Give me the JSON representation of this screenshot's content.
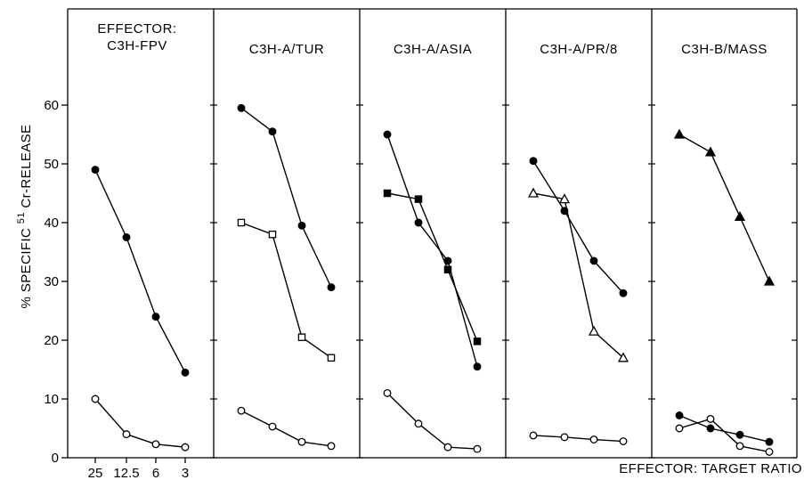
{
  "chart_data": {
    "type": "line",
    "ylabel_prefix": "% SPECIFIC ",
    "ylabel_sup": "51",
    "ylabel_suffix": " Cr-RELEASE",
    "xlabel": "EFFECTOR: TARGET RATIO",
    "ylim": [
      0,
      70
    ],
    "yticks": [
      0,
      10,
      20,
      30,
      40,
      50,
      60
    ],
    "x_categories": [
      "25",
      "12.5",
      "6",
      "3"
    ],
    "panels": [
      {
        "title_lines": [
          "EFFECTOR:",
          "C3H-FPV"
        ],
        "series": [
          {
            "marker": "filled-circle",
            "values": [
              49,
              37.5,
              24,
              14.5
            ]
          },
          {
            "marker": "open-circle",
            "values": [
              10,
              4,
              2.3,
              1.8
            ]
          }
        ]
      },
      {
        "title_lines": [
          "C3H-A/TUR"
        ],
        "series": [
          {
            "marker": "filled-circle",
            "values": [
              59.5,
              55.5,
              39.5,
              29
            ]
          },
          {
            "marker": "open-square",
            "values": [
              40,
              38,
              20.5,
              17
            ]
          },
          {
            "marker": "open-circle",
            "values": [
              8,
              5.3,
              2.7,
              2
            ]
          }
        ]
      },
      {
        "title_lines": [
          "C3H-A/ASIA"
        ],
        "series": [
          {
            "marker": "filled-circle",
            "values": [
              55,
              40,
              33.5,
              15.5
            ]
          },
          {
            "marker": "filled-square",
            "values": [
              45,
              44,
              32,
              19.8
            ]
          },
          {
            "marker": "open-circle",
            "values": [
              11,
              5.8,
              1.8,
              1.5
            ]
          }
        ]
      },
      {
        "title_lines": [
          "C3H-A/PR/8"
        ],
        "series": [
          {
            "marker": "filled-circle",
            "values": [
              50.5,
              42,
              33.5,
              28
            ]
          },
          {
            "marker": "open-triangle",
            "values": [
              45,
              44,
              21.5,
              17
            ]
          },
          {
            "marker": "open-circle",
            "values": [
              3.8,
              3.5,
              3.1,
              2.8
            ]
          }
        ]
      },
      {
        "title_lines": [
          "C3H-B/MASS"
        ],
        "series": [
          {
            "marker": "filled-triangle",
            "values": [
              55,
              52,
              41,
              30
            ]
          },
          {
            "marker": "filled-circle",
            "values": [
              7.2,
              5,
              3.9,
              2.7
            ]
          },
          {
            "marker": "open-circle",
            "values": [
              5,
              6.6,
              2,
              1
            ]
          }
        ]
      }
    ]
  }
}
